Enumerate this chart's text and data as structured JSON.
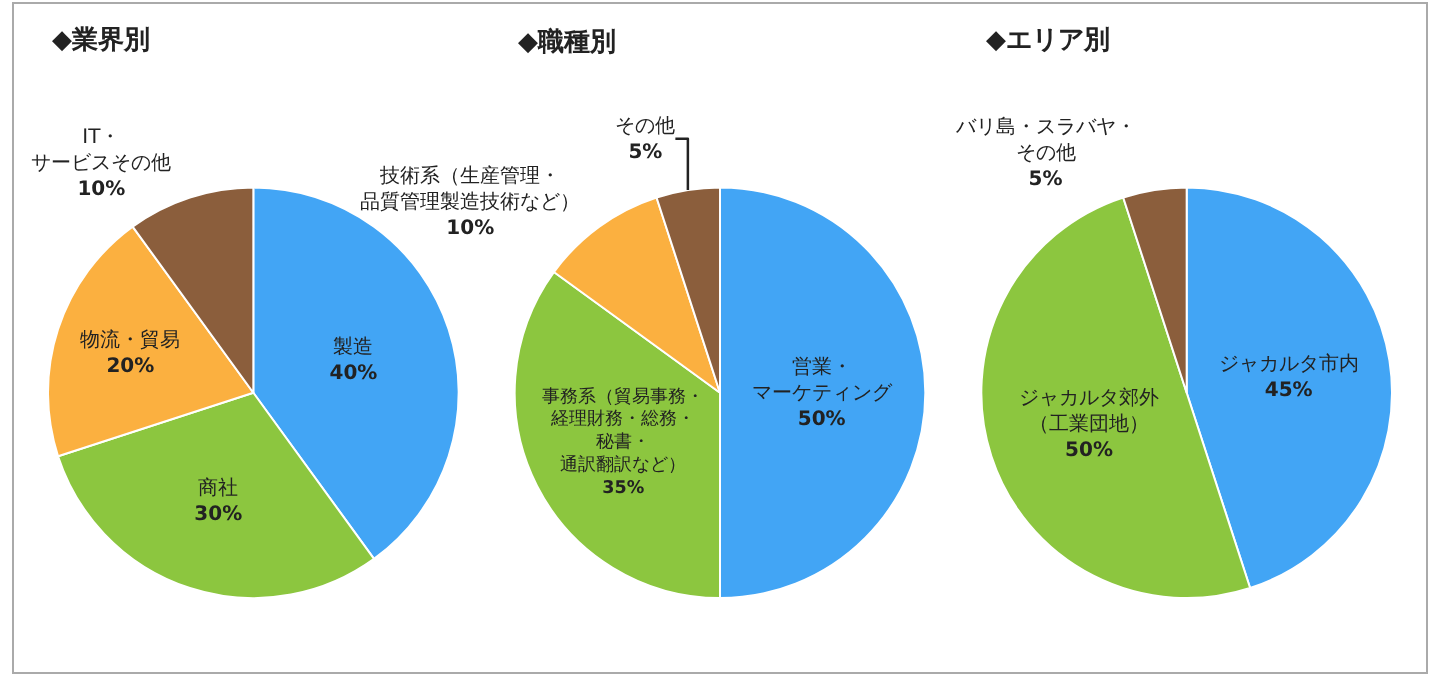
{
  "chart_data": [
    {
      "type": "pie",
      "title": "◆業界別",
      "categories": [
        "製造",
        "商社",
        "物流・貿易",
        "IT・サービスその他"
      ],
      "values": [
        40,
        30,
        20,
        10
      ],
      "value_labels": [
        "40%",
        "30%",
        "20%",
        "10%"
      ],
      "colors": [
        "#42a5f5",
        "#8cc63f",
        "#fbb040",
        "#8b5e3c"
      ]
    },
    {
      "type": "pie",
      "title": "◆職種別",
      "categories": [
        "営業・マーケティング",
        "事務系（貿易事務・経理財務・総務・秘書・通訳翻訳など）",
        "技術系（生産管理・品質管理製造技術など）",
        "その他"
      ],
      "values": [
        50,
        35,
        10,
        5
      ],
      "value_labels": [
        "50%",
        "35%",
        "10%",
        "5%"
      ],
      "colors": [
        "#42a5f5",
        "#8cc63f",
        "#fbb040",
        "#8b5e3c"
      ]
    },
    {
      "type": "pie",
      "title": "◆エリア別",
      "categories": [
        "ジャカルタ市内",
        "ジャカルタ郊外（工業団地）",
        "バリ島・スラバヤ・その他"
      ],
      "values": [
        45,
        50,
        5
      ],
      "value_labels": [
        "45%",
        "50%",
        "5%"
      ],
      "colors": [
        "#42a5f5",
        "#8cc63f",
        "#8b5e3c"
      ]
    }
  ]
}
